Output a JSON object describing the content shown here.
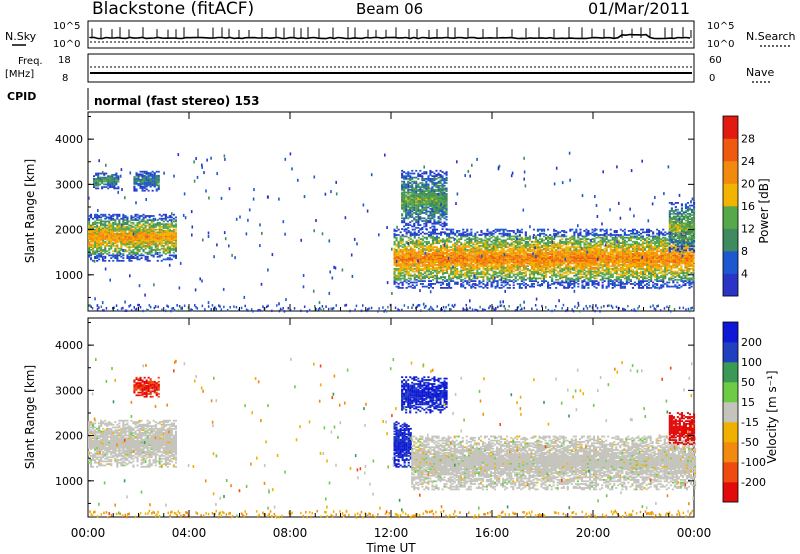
{
  "header": {
    "station": "Blackstone (fitACF)",
    "beam": "Beam 06",
    "date": "01/Mar/2011"
  },
  "status_panel": {
    "nsky_label": "N.Sky",
    "nsky_ticks": [
      "10^5",
      "10^0"
    ],
    "nsearch_label": "N.Search",
    "nsearch_ticks": [
      "10^5",
      "10^0"
    ],
    "freq_label": "Freq.",
    "freq_unit": "[MHz]",
    "freq_ticks": [
      "18",
      "8"
    ],
    "nave_label": "Nave",
    "nave_ticks": [
      "60",
      "0"
    ],
    "cpid_label": "CPID",
    "cpid_value": "normal (fast stereo) 153"
  },
  "colors": {
    "power_scale": [
      "#2a35c8",
      "#1e58d0",
      "#3f8a5e",
      "#56a84a",
      "#f2b400",
      "#f28a10",
      "#ef5a10",
      "#e21a10"
    ],
    "velocity_scale": [
      "#e20b0b",
      "#f04a10",
      "#f28a10",
      "#f0b000",
      "#c4c4bc",
      "#6dcb45",
      "#3a9a55",
      "#2040c0",
      "#1018d8"
    ]
  },
  "chart_data": [
    {
      "type": "heatmap",
      "panel": "power",
      "xlabel": "Time UT",
      "ylabel": "Slant Range [km]",
      "xlim": [
        0,
        24
      ],
      "ylim": [
        200,
        4600
      ],
      "x_ticks": [
        "00:00",
        "04:00",
        "08:00",
        "12:00",
        "16:00",
        "20:00",
        "00:00"
      ],
      "y_ticks": [
        1000,
        2000,
        3000,
        4000
      ],
      "colorbar": {
        "label": "Power [dB]",
        "ticks": [
          "28",
          "24",
          "20",
          "16",
          "12",
          "8",
          "4"
        ],
        "range": [
          0,
          32
        ]
      },
      "regions": [
        {
          "t0": 0.0,
          "t1": 3.5,
          "r0": 1300,
          "r1": 2350,
          "level": 0.55
        },
        {
          "t0": 0.2,
          "t1": 1.2,
          "r0": 2900,
          "r1": 3250,
          "level": 0.3
        },
        {
          "t0": 1.8,
          "t1": 2.8,
          "r0": 2850,
          "r1": 3300,
          "level": 0.25
        },
        {
          "t0": 12.1,
          "t1": 24.0,
          "r0": 700,
          "r1": 2000,
          "level": 0.6
        },
        {
          "t0": 12.4,
          "t1": 14.2,
          "r0": 2000,
          "r1": 3300,
          "level": 0.35
        },
        {
          "t0": 23.0,
          "t1": 24.0,
          "r0": 1500,
          "r1": 2600,
          "level": 0.4
        }
      ]
    },
    {
      "type": "heatmap",
      "panel": "velocity",
      "xlabel": "Time UT",
      "ylabel": "Slant Range [km]",
      "xlim": [
        0,
        24
      ],
      "ylim": [
        200,
        4600
      ],
      "x_ticks": [
        "00:00",
        "04:00",
        "08:00",
        "12:00",
        "16:00",
        "20:00",
        "00:00"
      ],
      "y_ticks": [
        1000,
        2000,
        3000,
        4000
      ],
      "colorbar": {
        "label": "Velocity [m s⁻¹]",
        "ticks": [
          "200",
          "100",
          "50",
          "15",
          "-15",
          "-50",
          "-100",
          "-200"
        ],
        "range": [
          -250,
          250
        ]
      },
      "regions": [
        {
          "t0": 0.0,
          "t1": 3.5,
          "r0": 1300,
          "r1": 2350,
          "value": 0
        },
        {
          "t0": 1.8,
          "t1": 2.8,
          "r0": 2850,
          "r1": 3300,
          "value": -200
        },
        {
          "t0": 12.1,
          "t1": 12.8,
          "r0": 1300,
          "r1": 2300,
          "value": 200
        },
        {
          "t0": 12.4,
          "t1": 14.2,
          "r0": 2500,
          "r1": 3300,
          "value": 200
        },
        {
          "t0": 12.8,
          "t1": 24.0,
          "r0": 800,
          "r1": 2000,
          "value": 0
        },
        {
          "t0": 23.0,
          "t1": 24.0,
          "r0": 1800,
          "r1": 2500,
          "value": -220
        }
      ]
    }
  ]
}
